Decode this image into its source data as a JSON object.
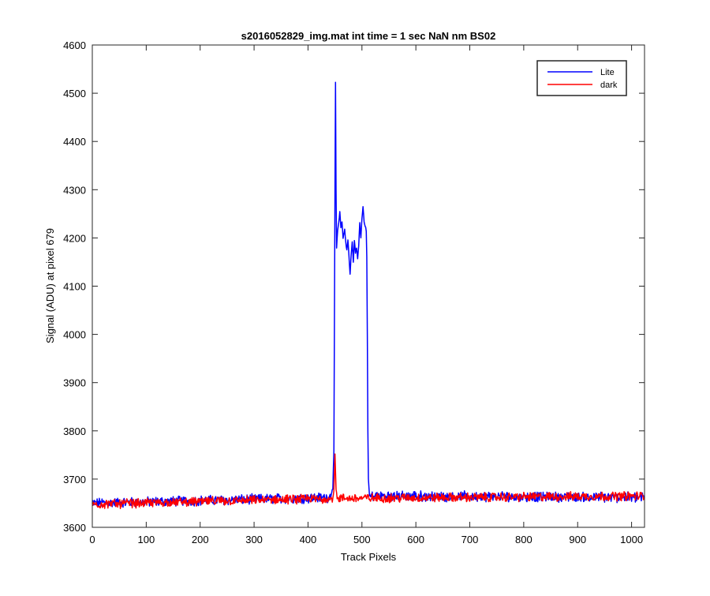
{
  "chart_data": {
    "type": "line",
    "title": "s2016052829_img.mat int time = 1 sec  NaN nm BS02",
    "xlabel": "Track Pixels",
    "ylabel": "Signal (ADU) at pixel 679",
    "xlim": [
      0,
      1024
    ],
    "ylim": [
      3600,
      4600
    ],
    "x_ticks": [
      0,
      100,
      200,
      300,
      400,
      500,
      600,
      700,
      800,
      900,
      1000
    ],
    "y_ticks": [
      3600,
      3700,
      3800,
      3900,
      4000,
      4100,
      4200,
      4300,
      4400,
      4500,
      4600
    ],
    "grid": false,
    "legend_position": "top-right",
    "series": [
      {
        "name": "Lite",
        "color": "#0000ff",
        "baseline": 3660,
        "noise_amplitude": 9,
        "points": [
          [
            0,
            3650
          ],
          [
            440,
            3662
          ],
          [
            446,
            3680
          ],
          [
            448,
            3760
          ],
          [
            450,
            4300
          ],
          [
            451,
            4522
          ],
          [
            452,
            4300
          ],
          [
            453,
            4180
          ],
          [
            455,
            4215
          ],
          [
            457,
            4230
          ],
          [
            459,
            4253
          ],
          [
            461,
            4220
          ],
          [
            463,
            4235
          ],
          [
            465,
            4200
          ],
          [
            468,
            4218
          ],
          [
            470,
            4190
          ],
          [
            472,
            4175
          ],
          [
            474,
            4195
          ],
          [
            476,
            4160
          ],
          [
            478,
            4125
          ],
          [
            480,
            4165
          ],
          [
            482,
            4190
          ],
          [
            484,
            4150
          ],
          [
            486,
            4195
          ],
          [
            488,
            4170
          ],
          [
            490,
            4180
          ],
          [
            492,
            4155
          ],
          [
            494,
            4185
          ],
          [
            496,
            4230
          ],
          [
            498,
            4200
          ],
          [
            500,
            4240
          ],
          [
            502,
            4265
          ],
          [
            504,
            4235
          ],
          [
            506,
            4225
          ],
          [
            508,
            4215
          ],
          [
            509,
            4160
          ],
          [
            510,
            4000
          ],
          [
            511,
            3800
          ],
          [
            512,
            3700
          ],
          [
            514,
            3665
          ],
          [
            1024,
            3662
          ]
        ]
      },
      {
        "name": "dark",
        "color": "#ff0000",
        "baseline": 3658,
        "noise_amplitude": 8,
        "points": [
          [
            0,
            3648
          ],
          [
            446,
            3660
          ],
          [
            448,
            3675
          ],
          [
            450,
            3752
          ],
          [
            452,
            3680
          ],
          [
            454,
            3660
          ],
          [
            1024,
            3665
          ]
        ]
      }
    ]
  }
}
